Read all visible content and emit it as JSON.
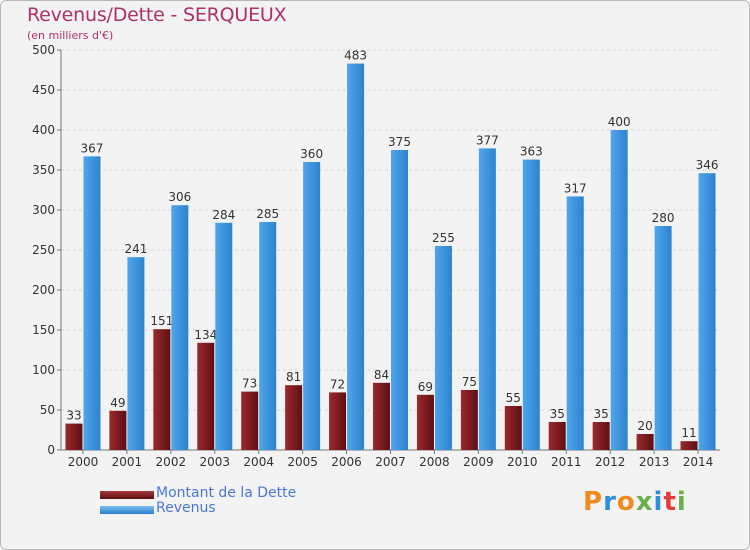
{
  "chart_data": {
    "type": "bar",
    "title": "Revenus/Dette - SERQUEUX",
    "subtitle": "(en milliers d'€)",
    "categories": [
      "2000",
      "2001",
      "2002",
      "2003",
      "2004",
      "2005",
      "2006",
      "2007",
      "2008",
      "2009",
      "2010",
      "2011",
      "2012",
      "2013",
      "2014"
    ],
    "series": [
      {
        "name": "Montant de la Dette",
        "color": "#7a1a1e",
        "values": [
          33,
          49,
          151,
          134,
          73,
          81,
          72,
          84,
          69,
          75,
          55,
          35,
          35,
          20,
          11
        ]
      },
      {
        "name": "Revenus",
        "color": "#3f97e0",
        "values": [
          367,
          241,
          306,
          284,
          285,
          360,
          483,
          375,
          255,
          377,
          363,
          317,
          400,
          280,
          346
        ]
      }
    ],
    "ylim": [
      0,
      500
    ],
    "yticks": [
      0,
      50,
      100,
      150,
      200,
      250,
      300,
      350,
      400,
      450,
      500
    ],
    "grid": true,
    "legend_position": "bottom-left"
  },
  "logo": {
    "text": "Proxiti",
    "letters": [
      "P",
      "r",
      "o",
      "x",
      "i",
      "t",
      "i"
    ]
  }
}
